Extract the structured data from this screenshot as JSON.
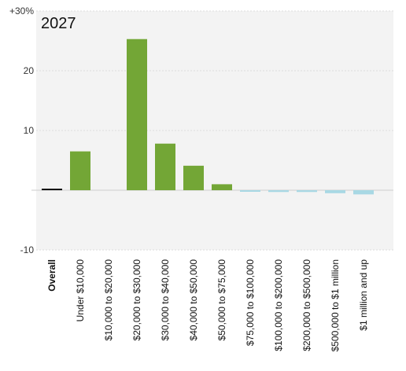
{
  "chart_data": {
    "type": "bar",
    "title": "2027",
    "xlabel": "",
    "ylabel": "",
    "ylim": [
      -10,
      30
    ],
    "yticks": [
      -10,
      0,
      10,
      20,
      30
    ],
    "ytick_labels": [
      "-10",
      "",
      "10",
      "20",
      "+30%"
    ],
    "grid": true,
    "categories": [
      "Overall",
      "Under $10,000",
      "$10,000 to $20,000",
      "$20,000 to $30,000",
      "$30,000 to $40,000",
      "$40,000 to $50,000",
      "$50,000 to $75,000",
      "$75,000 to $100,000",
      "$100,000 to $200,000",
      "$200,000 to $500,000",
      "$500,000 to $1 million",
      "$1 million and up"
    ],
    "values": [
      0.2,
      6.5,
      0,
      25.3,
      7.8,
      4.1,
      1.0,
      -0.2,
      -0.3,
      -0.3,
      -0.5,
      -0.7
    ],
    "bold_categories": [
      "Overall"
    ],
    "colors": {
      "overall": "#111111",
      "positive": "#73a636",
      "negative": "#a8d8e4",
      "negative_edge": "#8cc7d6",
      "plot_background": "#f3f3f3",
      "grid": "#dddddd"
    }
  }
}
